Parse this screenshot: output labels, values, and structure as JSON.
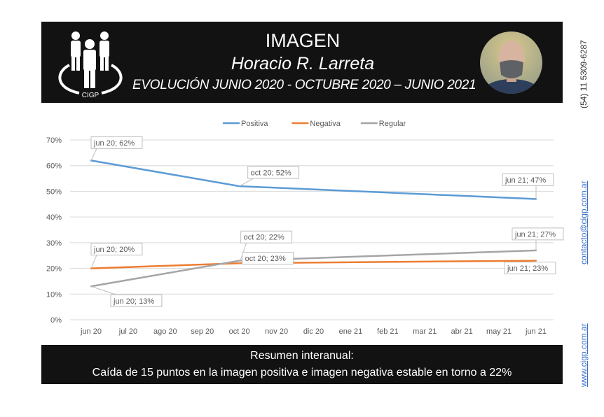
{
  "header": {
    "logo_text": "CIGP",
    "title": "IMAGEN",
    "subtitle": "Horacio R. Larreta",
    "period": "EVOLUCIÓN JUNIO 2020 - OCTUBRE 2020 – JUNIO 2021"
  },
  "sidebar": {
    "phone": "(54) 11 5309-6287",
    "email": "contacto@cigp.com.ar",
    "website": "www.cigp.com.ar"
  },
  "footer": {
    "line1": "Resumen interanual:",
    "line2": "Caída de 15 puntos en la imagen positiva e imagen negativa estable en torno a 22%"
  },
  "chart_data": {
    "type": "line",
    "title": "",
    "xlabel": "",
    "ylabel": "",
    "ylim": [
      0,
      70
    ],
    "y_ticks": [
      "0%",
      "10%",
      "20%",
      "30%",
      "40%",
      "50%",
      "60%",
      "70%"
    ],
    "y_tick_values": [
      0,
      10,
      20,
      30,
      40,
      50,
      60,
      70
    ],
    "categories": [
      "jun 20",
      "jul 20",
      "ago 20",
      "sep 20",
      "oct 20",
      "nov 20",
      "dic 20",
      "ene 21",
      "feb 21",
      "mar 21",
      "abr 21",
      "may 21",
      "jun 21"
    ],
    "grid": true,
    "legend_position": "top",
    "series": [
      {
        "name": "Positiva",
        "color": "#5b9bd5",
        "points": [
          {
            "x": "jun 20",
            "y": 62
          },
          {
            "x": "oct 20",
            "y": 52
          },
          {
            "x": "jun 21",
            "y": 47
          }
        ],
        "labels": [
          "jun 20; 62%",
          "oct 20; 52%",
          "jun 21; 47%"
        ]
      },
      {
        "name": "Negativa",
        "color": "#ed7d31",
        "points": [
          {
            "x": "jun 20",
            "y": 20
          },
          {
            "x": "oct 20",
            "y": 22
          },
          {
            "x": "jun 21",
            "y": 23
          }
        ],
        "labels": [
          "jun 20; 20%",
          "oct 20; 22%",
          "jun 21; 23%"
        ]
      },
      {
        "name": "Regular",
        "color": "#a5a5a5",
        "points": [
          {
            "x": "jun 20",
            "y": 13
          },
          {
            "x": "oct 20",
            "y": 23
          },
          {
            "x": "jun 21",
            "y": 27
          }
        ],
        "labels": [
          "jun 20; 13%",
          "oct 20; 23%",
          "jun 21; 27%"
        ]
      }
    ]
  }
}
